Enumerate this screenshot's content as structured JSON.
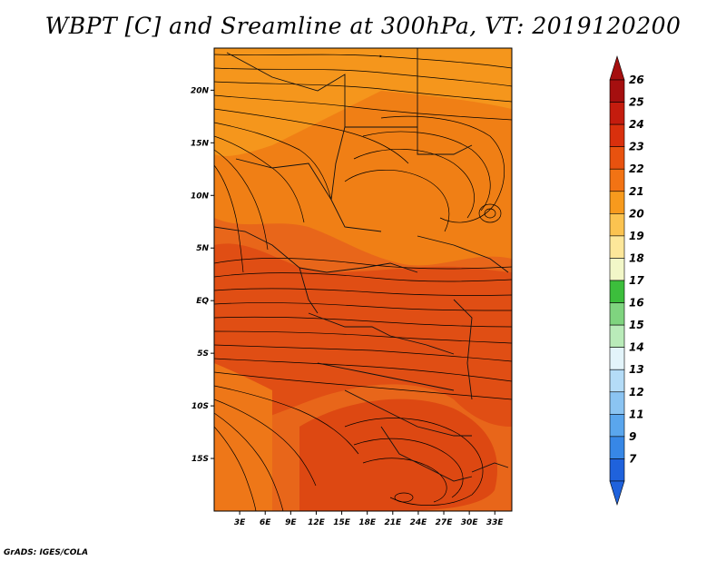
{
  "title": "WBPT [C] and Sreamline at 300hPa, VT: 2019120200",
  "footer": "GrADS: IGES/COLA",
  "map": {
    "lon_range": [
      0,
      35
    ],
    "lat_range": [
      -20,
      24
    ],
    "lon_ticks": [
      "3E",
      "6E",
      "9E",
      "12E",
      "15E",
      "18E",
      "21E",
      "24E",
      "27E",
      "30E",
      "33E"
    ],
    "lon_tick_values": [
      3,
      6,
      9,
      12,
      15,
      18,
      21,
      24,
      27,
      30,
      33
    ],
    "lat_ticks": [
      "20N",
      "15N",
      "10N",
      "5N",
      "EQ",
      "5S",
      "10S",
      "15S"
    ],
    "lat_tick_values": [
      20,
      15,
      10,
      5,
      0,
      -5,
      -10,
      -15
    ],
    "base_fill_color": "#e85a1b",
    "warm_fill_color": "#f07a14"
  },
  "colorbar": {
    "labels": [
      "26",
      "25",
      "24",
      "23",
      "22",
      "21",
      "20",
      "19",
      "18",
      "17",
      "16",
      "15",
      "14",
      "13",
      "12",
      "11",
      "9",
      "7"
    ],
    "colors": [
      "#a50f0f",
      "#c41c0e",
      "#d9300d",
      "#e8520f",
      "#f27314",
      "#f79a1d",
      "#fbc350",
      "#fde79a",
      "#f2f7c8",
      "#3cbe3c",
      "#7fd47f",
      "#b9ebb9",
      "#e3f4fa",
      "#b4dcf7",
      "#8bc4f2",
      "#5aa6ed",
      "#3787e6",
      "#1f62dc"
    ]
  }
}
